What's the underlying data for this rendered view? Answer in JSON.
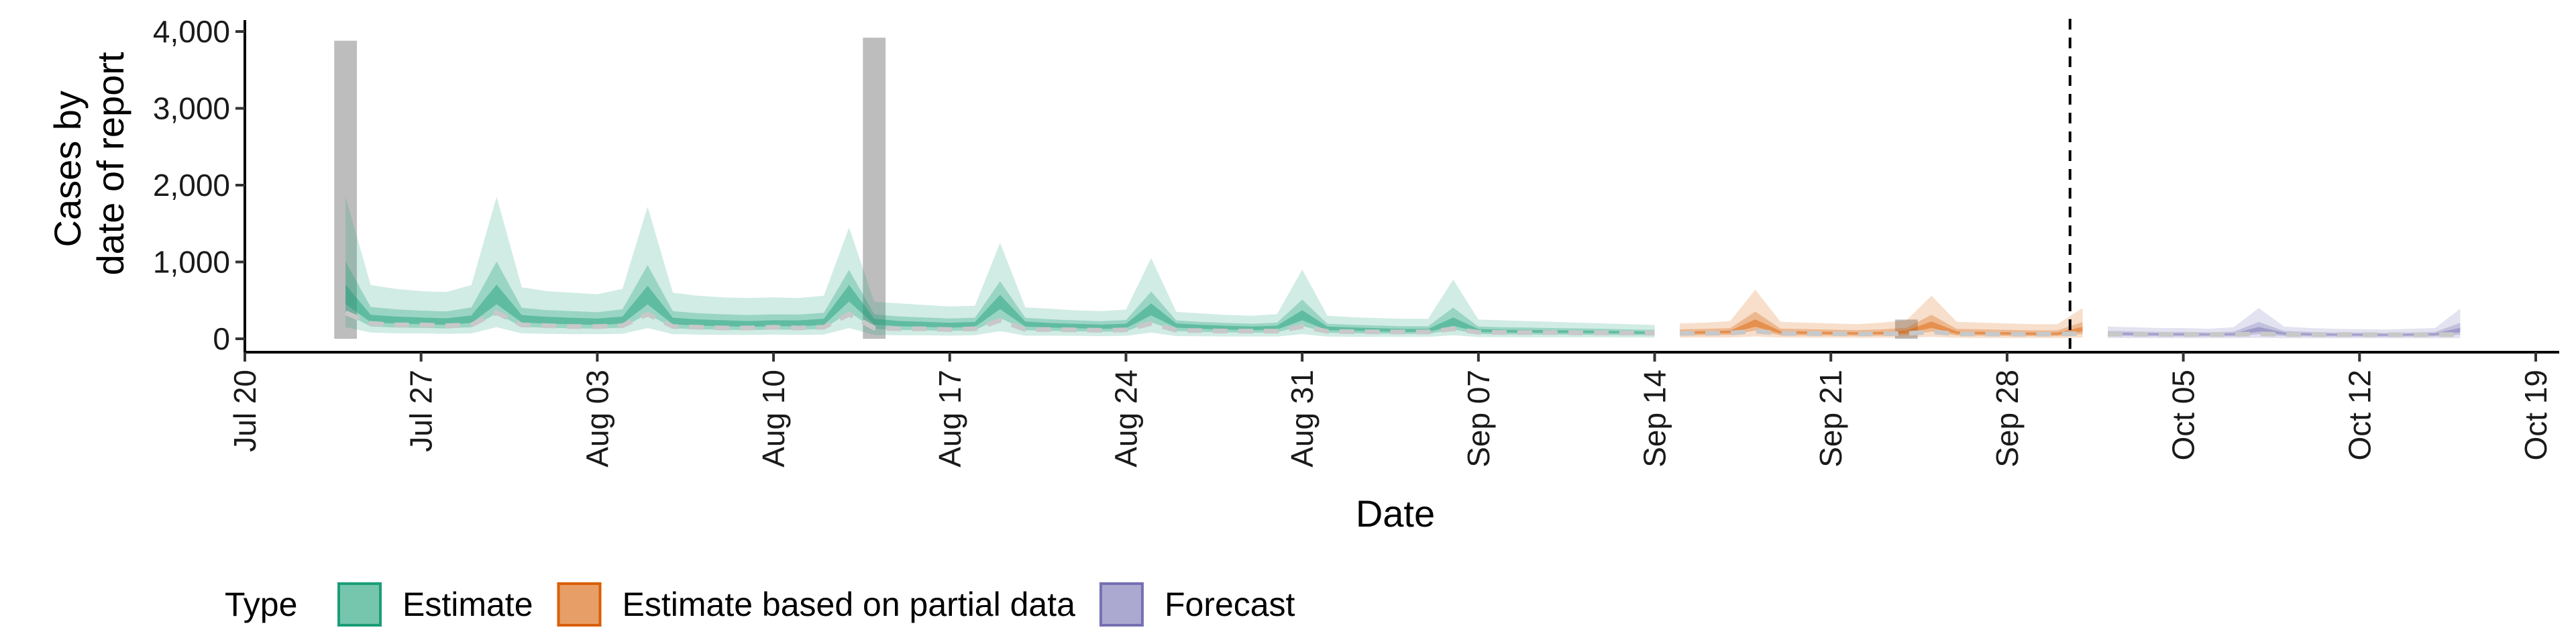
{
  "chart_data": {
    "type": "area",
    "xlabel": "Date",
    "ylabel": [
      "Cases by",
      "date of report"
    ],
    "ylim": [
      0,
      4000
    ],
    "yticks": [
      0,
      1000,
      2000,
      3000,
      4000
    ],
    "ytick_labels": [
      "0",
      "1,000",
      "2,000",
      "3,000",
      "4,000"
    ],
    "xlim": [
      "2020-07-20",
      "2020-10-19"
    ],
    "xticks": [
      "2020-07-20",
      "2020-07-27",
      "2020-08-03",
      "2020-08-10",
      "2020-08-17",
      "2020-08-24",
      "2020-08-31",
      "2020-09-07",
      "2020-09-14",
      "2020-09-21",
      "2020-09-28",
      "2020-10-05",
      "2020-10-12",
      "2020-10-19"
    ],
    "xtick_labels": [
      "Jul 20",
      "Jul 27",
      "Aug 03",
      "Aug 10",
      "Aug 17",
      "Aug 24",
      "Aug 31",
      "Sep 07",
      "Sep 14",
      "Sep 21",
      "Sep 28",
      "Oct 05",
      "Oct 12",
      "Oct 19"
    ],
    "forecast_cutoff": "2020-10-01",
    "reported_bars": [
      {
        "date": "2020-07-24",
        "value": 3880
      },
      {
        "date": "2020-08-14",
        "value": 3920
      },
      {
        "date": "2020-09-24",
        "value": 250
      }
    ],
    "series": [
      {
        "name": "Estimate",
        "color": "#1b9e77",
        "dates": [
          "2020-07-24",
          "2020-07-25",
          "2020-07-26",
          "2020-07-27",
          "2020-07-28",
          "2020-07-29",
          "2020-07-30",
          "2020-07-31",
          "2020-08-01",
          "2020-08-02",
          "2020-08-03",
          "2020-08-04",
          "2020-08-05",
          "2020-08-06",
          "2020-08-07",
          "2020-08-08",
          "2020-08-09",
          "2020-08-10",
          "2020-08-11",
          "2020-08-12",
          "2020-08-13",
          "2020-08-14",
          "2020-08-15",
          "2020-08-16",
          "2020-08-17",
          "2020-08-18",
          "2020-08-19",
          "2020-08-20",
          "2020-08-21",
          "2020-08-22",
          "2020-08-23",
          "2020-08-24",
          "2020-08-25",
          "2020-08-26",
          "2020-08-27",
          "2020-08-28",
          "2020-08-29",
          "2020-08-30",
          "2020-08-31",
          "2020-09-01",
          "2020-09-02",
          "2020-09-03",
          "2020-09-04",
          "2020-09-05",
          "2020-09-06",
          "2020-09-07",
          "2020-09-08",
          "2020-09-09",
          "2020-09-10",
          "2020-09-11",
          "2020-09-12",
          "2020-09-13",
          "2020-09-14"
        ],
        "median": [
          550,
          260,
          240,
          230,
          220,
          250,
          550,
          260,
          240,
          230,
          220,
          240,
          550,
          230,
          210,
          200,
          190,
          200,
          200,
          220,
          600,
          230,
          200,
          190,
          180,
          190,
          480,
          200,
          180,
          170,
          160,
          170,
          380,
          180,
          160,
          150,
          140,
          150,
          300,
          140,
          130,
          120,
          110,
          110,
          210,
          110,
          100,
          100,
          95,
          95,
          90,
          85,
          80
        ],
        "upper90": [
          1850,
          700,
          650,
          620,
          610,
          700,
          1850,
          670,
          620,
          600,
          580,
          650,
          1720,
          600,
          560,
          540,
          530,
          540,
          530,
          560,
          1450,
          480,
          460,
          440,
          420,
          430,
          1250,
          410,
          390,
          370,
          360,
          380,
          1050,
          350,
          330,
          310,
          300,
          320,
          900,
          300,
          280,
          270,
          260,
          260,
          770,
          250,
          240,
          230,
          220,
          210,
          200,
          190,
          180
        ],
        "lower90": [
          150,
          80,
          70,
          70,
          65,
          70,
          150,
          70,
          65,
          60,
          60,
          65,
          140,
          60,
          55,
          50,
          50,
          55,
          50,
          55,
          140,
          50,
          45,
          45,
          40,
          45,
          100,
          40,
          40,
          38,
          35,
          38,
          80,
          35,
          33,
          30,
          30,
          30,
          60,
          28,
          26,
          25,
          24,
          24,
          45,
          22,
          21,
          20,
          20,
          19,
          18,
          17,
          16
        ]
      },
      {
        "name": "Estimate based on partial data",
        "color": "#d95f02",
        "dates": [
          "2020-09-15",
          "2020-09-16",
          "2020-09-17",
          "2020-09-18",
          "2020-09-19",
          "2020-09-20",
          "2020-09-21",
          "2020-09-22",
          "2020-09-23",
          "2020-09-24",
          "2020-09-25",
          "2020-09-26",
          "2020-09-27",
          "2020-09-28",
          "2020-09-29",
          "2020-09-30",
          "2020-10-01"
        ],
        "median": [
          80,
          85,
          90,
          200,
          85,
          80,
          75,
          70,
          75,
          90,
          180,
          80,
          75,
          70,
          65,
          65,
          120
        ],
        "upper90": [
          200,
          210,
          230,
          640,
          220,
          210,
          200,
          190,
          210,
          240,
          560,
          220,
          210,
          200,
          190,
          190,
          400
        ],
        "lower90": [
          15,
          16,
          17,
          30,
          15,
          14,
          13,
          12,
          12,
          14,
          25,
          12,
          11,
          10,
          10,
          10,
          15
        ]
      },
      {
        "name": "Forecast",
        "color": "#7570b3",
        "dates": [
          "2020-10-02",
          "2020-10-03",
          "2020-10-04",
          "2020-10-05",
          "2020-10-06",
          "2020-10-07",
          "2020-10-08",
          "2020-10-09",
          "2020-10-10",
          "2020-10-11",
          "2020-10-12",
          "2020-10-13",
          "2020-10-14",
          "2020-10-15",
          "2020-10-16"
        ],
        "median": [
          70,
          65,
          60,
          60,
          58,
          60,
          120,
          70,
          60,
          55,
          55,
          52,
          55,
          60,
          110
        ],
        "upper90": [
          160,
          150,
          140,
          140,
          130,
          150,
          400,
          160,
          140,
          130,
          125,
          120,
          130,
          140,
          390
        ],
        "lower90": [
          10,
          9,
          9,
          8,
          8,
          8,
          12,
          8,
          7,
          7,
          7,
          6,
          6,
          6,
          8
        ]
      }
    ],
    "legend": {
      "title": "Type",
      "position": "bottom",
      "items": [
        "Estimate",
        "Estimate based on partial data",
        "Forecast"
      ]
    },
    "grid": false
  }
}
